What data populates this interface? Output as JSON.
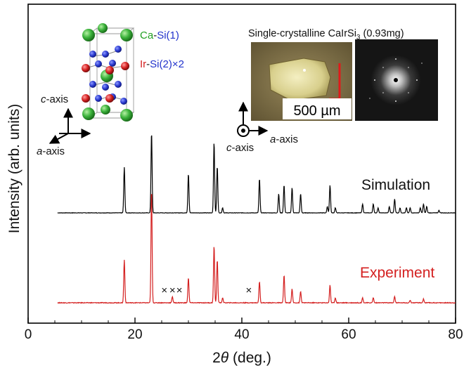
{
  "chart_data": {
    "type": "line",
    "xlabel": "2θ (deg.)",
    "ylabel": "Intensity (arb. units)",
    "xlim": [
      0,
      80
    ],
    "x_ticks": [
      0,
      20,
      40,
      60,
      80
    ],
    "grid": false,
    "series": [
      {
        "name": "Simulation",
        "color": "#000000",
        "peaks": [
          [
            18.0,
            0.36
          ],
          [
            23.1,
            0.64
          ],
          [
            30.0,
            0.31
          ],
          [
            34.8,
            0.56
          ],
          [
            35.4,
            0.37
          ],
          [
            36.4,
            0.04
          ],
          [
            43.3,
            0.27
          ],
          [
            46.9,
            0.15
          ],
          [
            47.9,
            0.22
          ],
          [
            49.4,
            0.2
          ],
          [
            51.0,
            0.15
          ],
          [
            56.0,
            0.05
          ],
          [
            56.5,
            0.22
          ],
          [
            57.5,
            0.04
          ],
          [
            62.6,
            0.07
          ],
          [
            64.6,
            0.07
          ],
          [
            65.5,
            0.04
          ],
          [
            67.6,
            0.05
          ],
          [
            68.6,
            0.11
          ],
          [
            69.6,
            0.04
          ],
          [
            70.8,
            0.04
          ],
          [
            71.5,
            0.04
          ],
          [
            73.4,
            0.04
          ],
          [
            74.0,
            0.07
          ],
          [
            74.6,
            0.05
          ],
          [
            76.9,
            0.02
          ]
        ]
      },
      {
        "name": "Experiment",
        "color": "#d42020",
        "peaks": [
          [
            18.0,
            0.34
          ],
          [
            23.1,
            0.9
          ],
          [
            27.0,
            0.05
          ],
          [
            30.0,
            0.2
          ],
          [
            34.8,
            0.45
          ],
          [
            35.4,
            0.34
          ],
          [
            36.4,
            0.04
          ],
          [
            43.3,
            0.17
          ],
          [
            47.9,
            0.22
          ],
          [
            49.4,
            0.11
          ],
          [
            51.0,
            0.09
          ],
          [
            56.5,
            0.14
          ],
          [
            57.5,
            0.04
          ],
          [
            62.6,
            0.04
          ],
          [
            64.6,
            0.04
          ],
          [
            68.6,
            0.05
          ],
          [
            71.5,
            0.02
          ],
          [
            74.0,
            0.03
          ]
        ]
      }
    ],
    "impurity_markers": {
      "symbol": "×",
      "positions": [
        25.5,
        27.0,
        28.3,
        41.3
      ]
    }
  },
  "labels": {
    "simulation": "Simulation",
    "experiment": "Experiment",
    "ylabel": "Intensity (arb. units)",
    "xlabel_theta": "θ",
    "xlabel_rest": " (deg.)",
    "xlabel_two": "2"
  },
  "structure": {
    "ca_label": "Ca",
    "si1_label": "Si(1)",
    "ir_label": "Ir",
    "si2_label": "Si(2)×2",
    "dash": "-",
    "c_axis_italic": "c",
    "c_axis_rest": "-axis",
    "a_axis_italic": "a",
    "a_axis_rest": "-axis",
    "colors": {
      "ca": "#22a022",
      "si": "#2233cc",
      "ir": "#d42020"
    }
  },
  "crystal": {
    "title_main": "Single-crystalline CaIrSi",
    "title_sub": "3",
    "title_mass": " (0.93mg)",
    "scale_bar": "500 µm",
    "c_axis_italic": "c",
    "c_axis_rest": "-axis",
    "a_axis_italic": "a",
    "a_axis_rest": "-axis"
  }
}
